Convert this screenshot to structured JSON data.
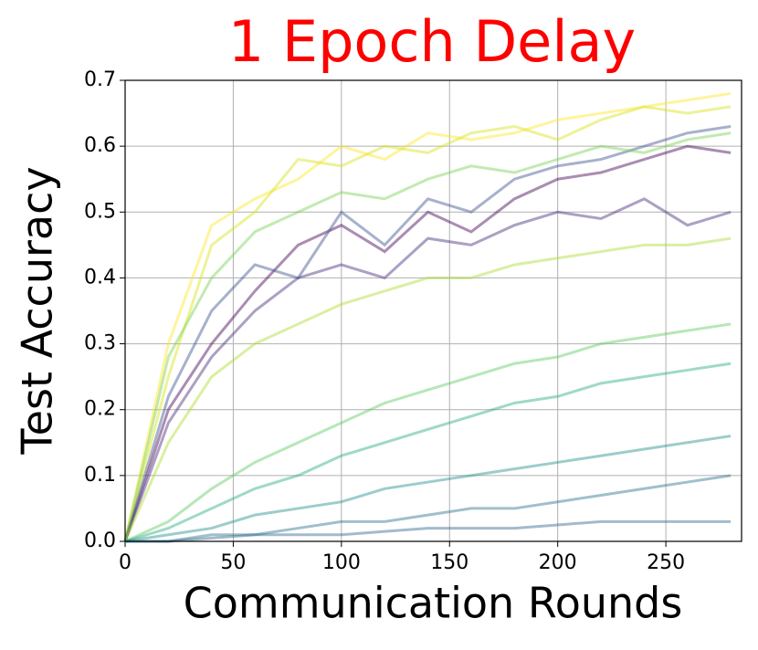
{
  "chart_data": {
    "type": "line",
    "title": "1 Epoch Delay",
    "title_color": "#ff0000",
    "x_label": "Communication Rounds",
    "y_label": "Test Accuracy",
    "x": [
      0,
      20,
      40,
      60,
      80,
      100,
      120,
      140,
      160,
      180,
      200,
      220,
      240,
      260,
      280
    ],
    "series": [
      {
        "color": "#fde725",
        "values": [
          0,
          0.3,
          0.48,
          0.52,
          0.55,
          0.6,
          0.58,
          0.62,
          0.61,
          0.62,
          0.64,
          0.65,
          0.66,
          0.67,
          0.68
        ]
      },
      {
        "color": "#d8e219",
        "values": [
          0,
          0.25,
          0.45,
          0.5,
          0.58,
          0.57,
          0.6,
          0.59,
          0.62,
          0.63,
          0.61,
          0.64,
          0.66,
          0.65,
          0.66
        ]
      },
      {
        "color": "#440154",
        "values": [
          0,
          0.2,
          0.3,
          0.38,
          0.45,
          0.48,
          0.44,
          0.5,
          0.47,
          0.52,
          0.55,
          0.56,
          0.58,
          0.6,
          0.59
        ]
      },
      {
        "color": "#3b528b",
        "values": [
          0,
          0.22,
          0.35,
          0.42,
          0.4,
          0.5,
          0.45,
          0.52,
          0.5,
          0.55,
          0.57,
          0.58,
          0.6,
          0.62,
          0.63
        ]
      },
      {
        "color": "#472d7b",
        "values": [
          0,
          0.18,
          0.28,
          0.35,
          0.4,
          0.42,
          0.4,
          0.46,
          0.45,
          0.48,
          0.5,
          0.49,
          0.52,
          0.48,
          0.5
        ]
      },
      {
        "color": "#addc30",
        "values": [
          0,
          0.15,
          0.25,
          0.3,
          0.33,
          0.36,
          0.38,
          0.4,
          0.4,
          0.42,
          0.43,
          0.44,
          0.45,
          0.45,
          0.46
        ]
      },
      {
        "color": "#5ec962",
        "values": [
          0,
          0.03,
          0.08,
          0.12,
          0.15,
          0.18,
          0.21,
          0.23,
          0.25,
          0.27,
          0.28,
          0.3,
          0.31,
          0.32,
          0.33
        ]
      },
      {
        "color": "#27ad81",
        "values": [
          0,
          0.02,
          0.05,
          0.08,
          0.1,
          0.13,
          0.15,
          0.17,
          0.19,
          0.21,
          0.22,
          0.24,
          0.25,
          0.26,
          0.27
        ]
      },
      {
        "color": "#21918c",
        "values": [
          0,
          0.01,
          0.02,
          0.04,
          0.05,
          0.06,
          0.08,
          0.09,
          0.1,
          0.11,
          0.12,
          0.13,
          0.14,
          0.15,
          0.16
        ]
      },
      {
        "color": "#2c728e",
        "values": [
          0,
          0,
          0.01,
          0.01,
          0.02,
          0.03,
          0.03,
          0.04,
          0.05,
          0.05,
          0.06,
          0.07,
          0.08,
          0.09,
          0.1
        ]
      },
      {
        "color": "#31688e",
        "values": [
          0,
          0,
          0.005,
          0.01,
          0.01,
          0.01,
          0.015,
          0.02,
          0.02,
          0.02,
          0.025,
          0.03,
          0.03,
          0.03,
          0.03
        ]
      },
      {
        "color": "#7ad151",
        "values": [
          0,
          0.28,
          0.4,
          0.47,
          0.5,
          0.53,
          0.52,
          0.55,
          0.57,
          0.56,
          0.58,
          0.6,
          0.59,
          0.61,
          0.62
        ]
      }
    ],
    "xlim": [
      0,
      285
    ],
    "ylim": [
      0,
      0.7
    ],
    "xticks": [
      0,
      50,
      100,
      150,
      200,
      250
    ],
    "yticks": [
      {
        "value": 0,
        "label": "0.0"
      },
      0.1,
      0.2,
      0.3,
      0.4,
      0.5,
      0.6,
      0.7
    ],
    "grid": true
  }
}
